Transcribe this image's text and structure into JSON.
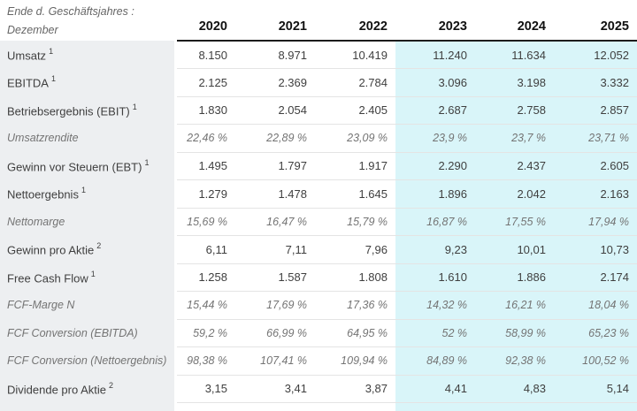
{
  "table": {
    "header": {
      "period_label_line1": "Ende d. Geschäftsjahres :",
      "period_label_line2": "Dezember",
      "years": [
        "2020",
        "2021",
        "2022",
        "2023",
        "2024",
        "2025"
      ]
    },
    "estimate_columns_start_index": 3,
    "rows": [
      {
        "label": "Umsatz",
        "sup": "1",
        "italic": false,
        "values": [
          "8.150",
          "8.971",
          "10.419",
          "11.240",
          "11.634",
          "12.052"
        ]
      },
      {
        "label": "EBITDA",
        "sup": "1",
        "italic": false,
        "values": [
          "2.125",
          "2.369",
          "2.784",
          "3.096",
          "3.198",
          "3.332"
        ]
      },
      {
        "label": "Betriebsergebnis (EBIT)",
        "sup": "1",
        "italic": false,
        "values": [
          "1.830",
          "2.054",
          "2.405",
          "2.687",
          "2.758",
          "2.857"
        ]
      },
      {
        "label": "Umsatzrendite",
        "sup": "",
        "italic": true,
        "values": [
          "22,46 %",
          "22,89 %",
          "23,09 %",
          "23,9 %",
          "23,7 %",
          "23,71 %"
        ]
      },
      {
        "label": "Gewinn vor Steuern (EBT)",
        "sup": "1",
        "italic": false,
        "values": [
          "1.495",
          "1.797",
          "1.917",
          "2.290",
          "2.437",
          "2.605"
        ]
      },
      {
        "label": "Nettoergebnis",
        "sup": "1",
        "italic": false,
        "values": [
          "1.279",
          "1.478",
          "1.645",
          "1.896",
          "2.042",
          "2.163"
        ]
      },
      {
        "label": "Nettomarge",
        "sup": "",
        "italic": true,
        "values": [
          "15,69 %",
          "16,47 %",
          "15,79 %",
          "16,87 %",
          "17,55 %",
          "17,94 %"
        ]
      },
      {
        "label": "Gewinn pro Aktie",
        "sup": "2",
        "italic": false,
        "values": [
          "6,11",
          "7,11",
          "7,96",
          "9,23",
          "10,01",
          "10,73"
        ]
      },
      {
        "label": "Free Cash Flow",
        "sup": "1",
        "italic": false,
        "values": [
          "1.258",
          "1.587",
          "1.808",
          "1.610",
          "1.886",
          "2.174"
        ]
      },
      {
        "label": "FCF-Marge N",
        "sup": "",
        "italic": true,
        "values": [
          "15,44 %",
          "17,69 %",
          "17,36 %",
          "14,32 %",
          "16,21 %",
          "18,04 %"
        ]
      },
      {
        "label": "FCF Conversion (EBITDA)",
        "sup": "",
        "italic": true,
        "values": [
          "59,2 %",
          "66,99 %",
          "64,95 %",
          "52 %",
          "58,99 %",
          "65,23 %"
        ]
      },
      {
        "label": "FCF Conversion (Nettoergebnis)",
        "sup": "",
        "italic": true,
        "values": [
          "98,38 %",
          "107,41 %",
          "109,94 %",
          "84,89 %",
          "92,38 %",
          "100,52 %"
        ]
      },
      {
        "label": "Dividende pro Aktie",
        "sup": "2",
        "italic": false,
        "values": [
          "3,15",
          "3,41",
          "3,87",
          "4,41",
          "4,83",
          "5,14"
        ]
      }
    ]
  },
  "colors": {
    "label_column_bg": "#edeff1",
    "estimate_bg": "#d9f5f9",
    "header_rule": "#1c1c1c",
    "row_divider": "#e4e4e4",
    "text_primary": "#3f3f3f",
    "text_secondary": "#747474",
    "year_text": "#111111",
    "period_text": "#666666"
  }
}
